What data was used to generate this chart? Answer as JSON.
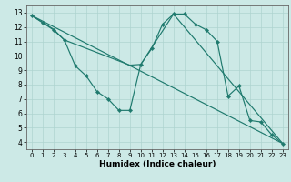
{
  "xlabel": "Humidex (Indice chaleur)",
  "ylabel": "",
  "bg_color": "#cce9e6",
  "grid_color": "#aed4d0",
  "line_color": "#1f7a6e",
  "spine_color": "#666666",
  "xlim": [
    -0.5,
    23.5
  ],
  "ylim": [
    3.5,
    13.5
  ],
  "xticks": [
    0,
    1,
    2,
    3,
    4,
    5,
    6,
    7,
    8,
    9,
    10,
    11,
    12,
    13,
    14,
    15,
    16,
    17,
    18,
    19,
    20,
    21,
    22,
    23
  ],
  "yticks": [
    4,
    5,
    6,
    7,
    8,
    9,
    10,
    11,
    12,
    13
  ],
  "series": [
    [
      0,
      12.8
    ],
    [
      1,
      12.3
    ],
    [
      2,
      11.8
    ],
    [
      3,
      11.1
    ],
    [
      4,
      9.3
    ],
    [
      5,
      8.6
    ],
    [
      6,
      7.5
    ],
    [
      7,
      7.0
    ],
    [
      8,
      6.2
    ],
    [
      9,
      6.2
    ],
    [
      10,
      9.4
    ],
    [
      11,
      10.5
    ],
    [
      12,
      12.2
    ],
    [
      13,
      12.9
    ],
    [
      14,
      12.9
    ],
    [
      15,
      12.2
    ],
    [
      16,
      11.8
    ],
    [
      17,
      11.0
    ],
    [
      18,
      7.2
    ],
    [
      19,
      7.9
    ],
    [
      20,
      5.5
    ],
    [
      21,
      5.4
    ],
    [
      22,
      4.5
    ],
    [
      23,
      3.9
    ]
  ],
  "line2": [
    [
      0,
      12.8
    ],
    [
      23,
      3.9
    ]
  ],
  "line3": [
    [
      0,
      12.8
    ],
    [
      2,
      11.85
    ],
    [
      3,
      11.1
    ],
    [
      9,
      9.35
    ],
    [
      10,
      9.4
    ],
    [
      13,
      12.9
    ],
    [
      23,
      3.9
    ]
  ],
  "xlabel_fontsize": 6.5,
  "tick_fontsize_x": 5.0,
  "tick_fontsize_y": 5.5,
  "linewidth": 0.85,
  "markersize": 2.2
}
